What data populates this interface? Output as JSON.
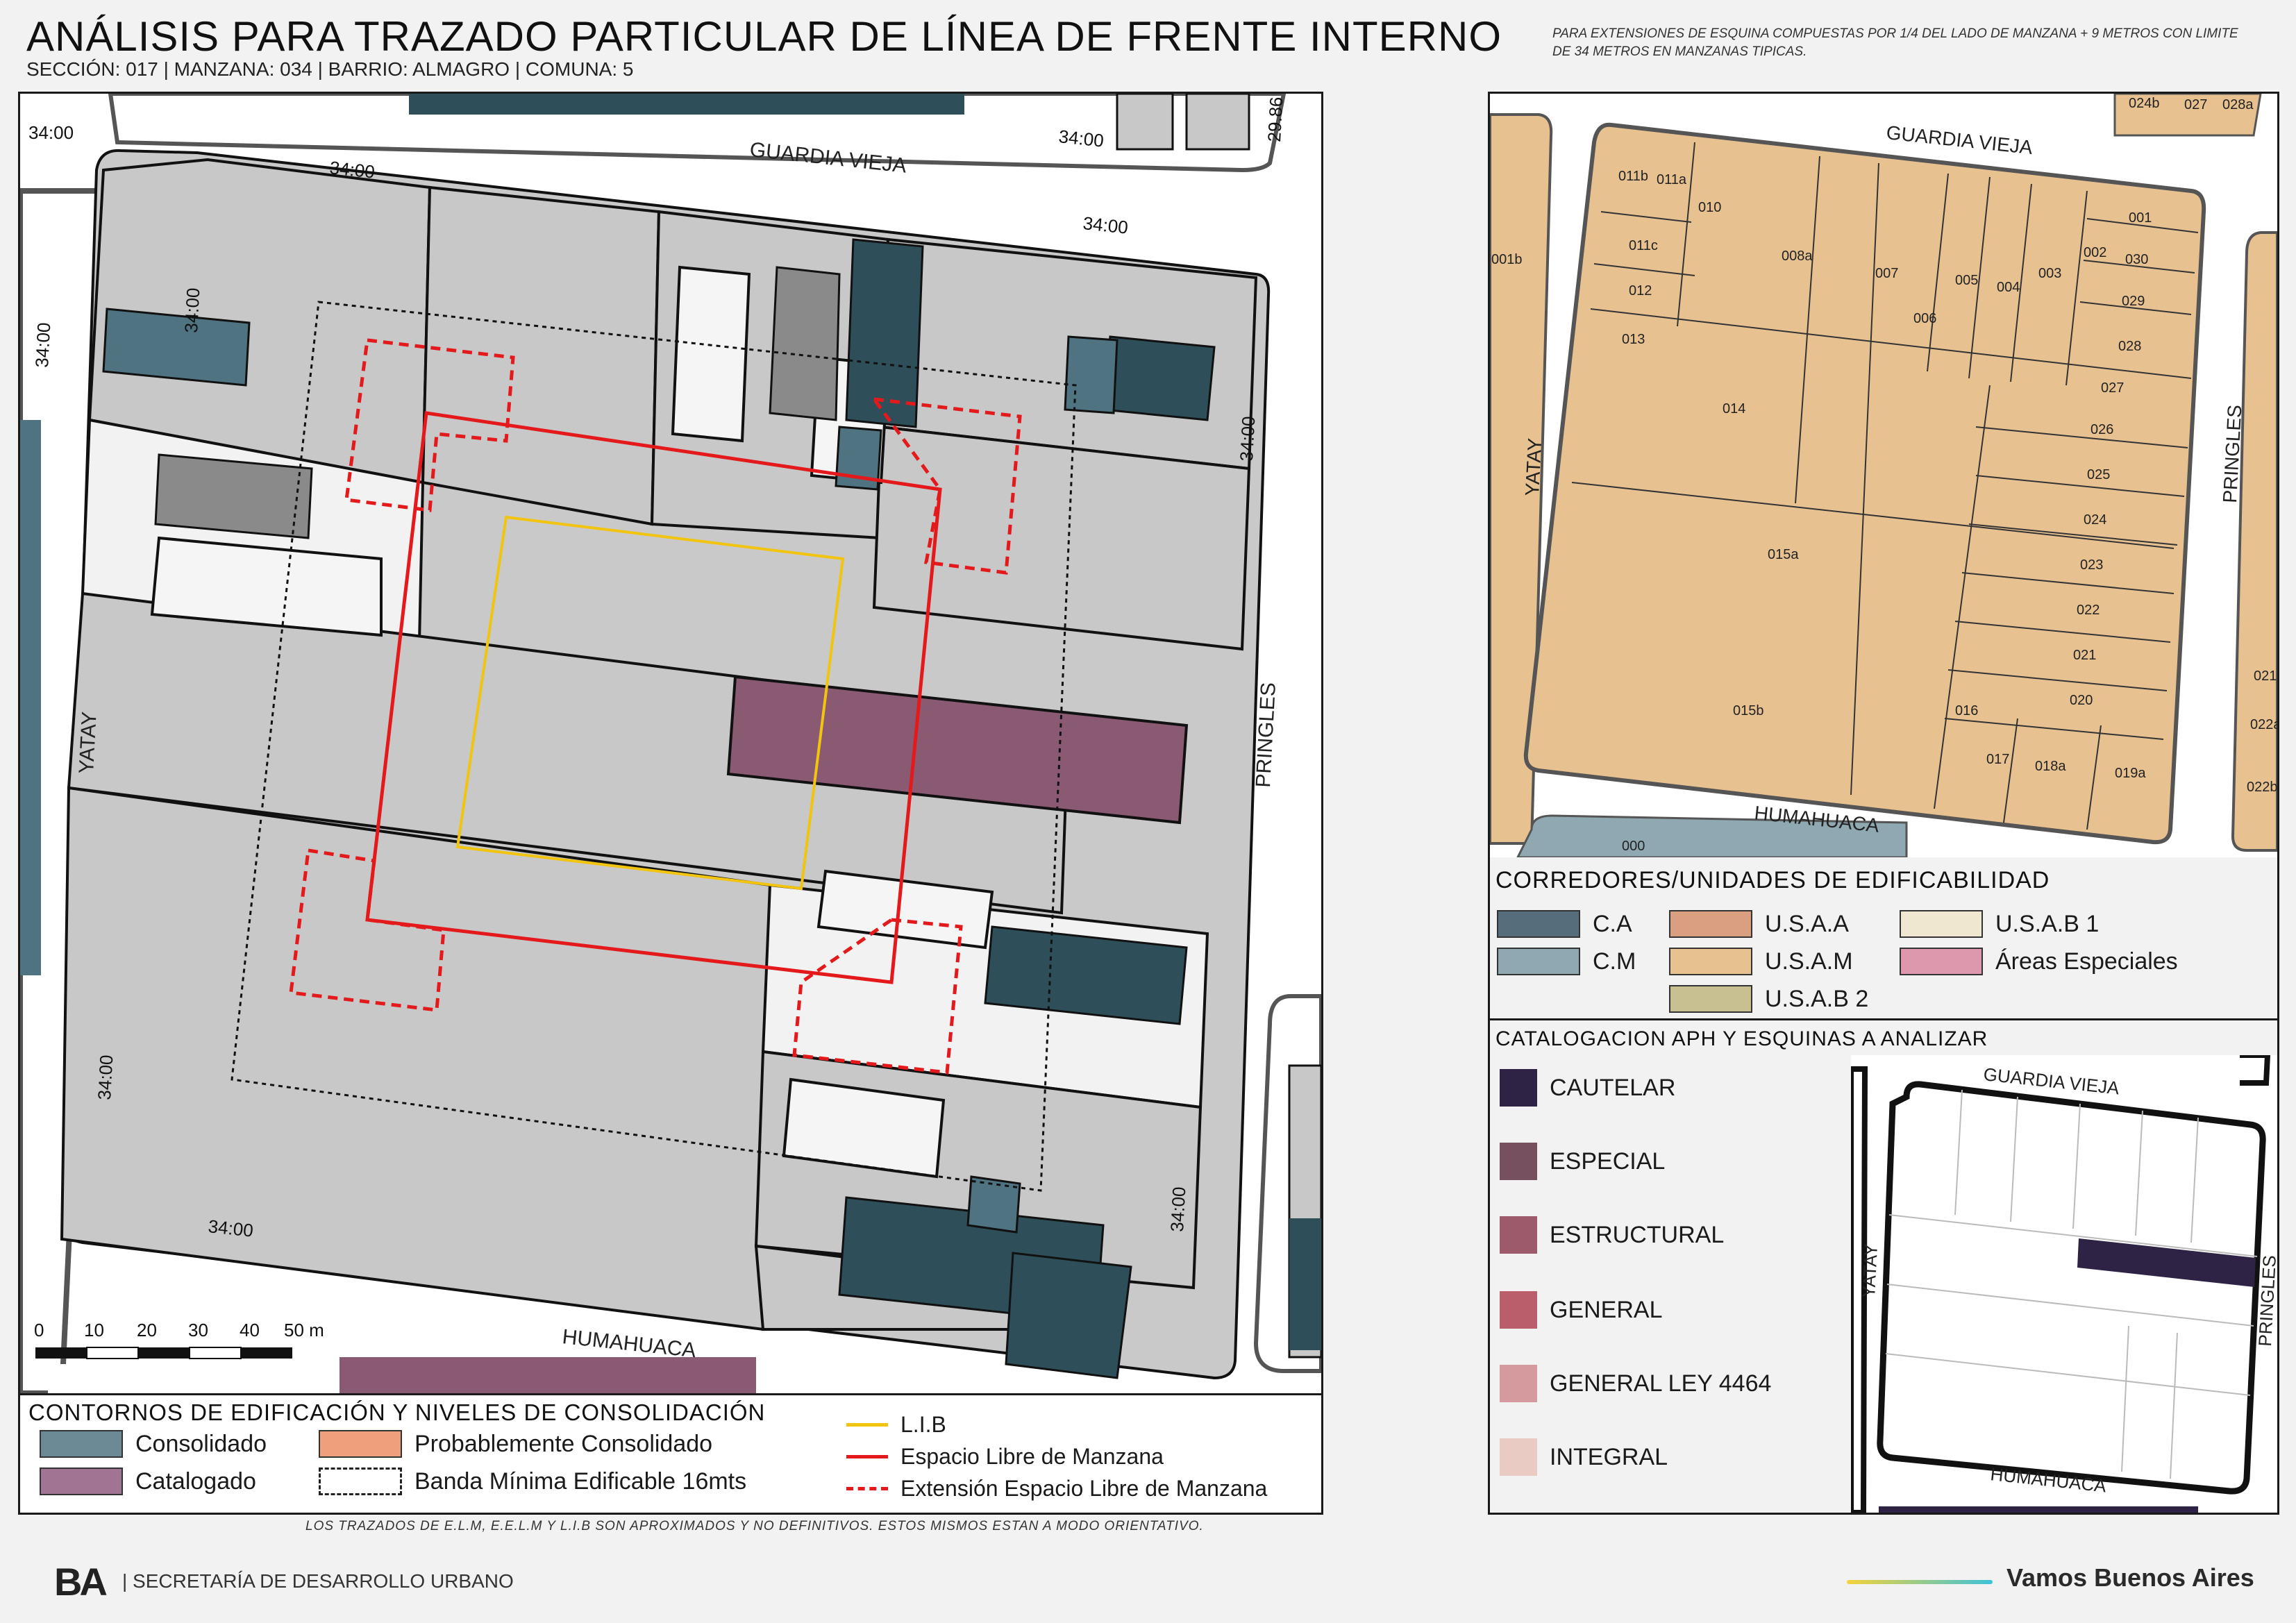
{
  "header": {
    "title": "ANÁLISIS PARA TRAZADO PARTICULAR DE LÍNEA DE FRENTE INTERNO",
    "subtitle": "SECCIÓN: 017 |  MANZANA: 034 | BARRIO: ALMAGRO | COMUNA: 5",
    "note": "PARA EXTENSIONES DE ESQUINA COMPUESTAS POR 1/4 DEL LADO DE MANZANA + 9 METROS CON LIMITE DE 34 METROS EN MANZANAS TIPICAS."
  },
  "main_map": {
    "streets": {
      "north": "GUARDIA VIEJA",
      "south": "HUMAHUACA",
      "west": "YATAY",
      "east": "PRINGLES"
    },
    "dim_labels": [
      "34:00",
      "34:00",
      "34:00",
      "34:00",
      "34:00",
      "34:00",
      "34:00",
      "34:00",
      "34:00",
      "34:00",
      "29.86"
    ],
    "scale": {
      "ticks": [
        "0",
        "10",
        "20",
        "30",
        "40",
        "50 m"
      ]
    }
  },
  "legend_contornos": {
    "title": "CONTORNOS DE EDIFICACIÓN Y NIVELES DE CONSOLIDACIÓN",
    "consolidado": "Consolidado",
    "probablemente": "Probablemente Consolidado",
    "catalogado": "Catalogado",
    "banda": "Banda Mínima Edificable 16mts",
    "lib": "L.I.B",
    "elm": "Espacio Libre de Manzana",
    "eelm": "Extensión Espacio Libre de Manzana",
    "colors": {
      "consolidado": "#6b8a96",
      "probablemente": "#efa07a",
      "catalogado": "#a07492",
      "lib": "#f1c40f",
      "elm": "#e3191b"
    }
  },
  "parcel_map": {
    "streets": {
      "north": "GUARDIA VIEJA",
      "south": "HUMAHUACA",
      "west": "YATAY",
      "east": "PRINGLES"
    },
    "parcels": [
      "011b",
      "011a",
      "010",
      "011c",
      "008a",
      "007",
      "006",
      "005",
      "004",
      "003",
      "002",
      "001",
      "030",
      "029",
      "028",
      "012",
      "013",
      "014",
      "027",
      "026",
      "025",
      "024",
      "023",
      "022",
      "021",
      "020",
      "015a",
      "015b",
      "016",
      "017",
      "018a",
      "019a"
    ],
    "edge_labels": [
      "024b",
      "027",
      "028a",
      "001b",
      "021",
      "022a",
      "022b",
      "000"
    ]
  },
  "legend_corredores": {
    "title": "CORREDORES/UNIDADES DE EDIFICABILIDAD",
    "items": [
      {
        "label": "C.A",
        "color": "#566e7c"
      },
      {
        "label": "U.S.A.A",
        "color": "#d99f80"
      },
      {
        "label": "U.S.A.B 1",
        "color": "#efe7cf"
      },
      {
        "label": "C.M",
        "color": "#8fa8b1"
      },
      {
        "label": "U.S.A.M",
        "color": "#e8c190"
      },
      {
        "label": "Áreas Especiales",
        "color": "#de98ad"
      },
      {
        "label": "U.S.A.B 2",
        "color": "#c9c091"
      }
    ]
  },
  "legend_catalogacion": {
    "title": "CATALOGACION APH Y ESQUINAS A ANALIZAR",
    "items": [
      {
        "label": "CAUTELAR",
        "color": "#2e2344"
      },
      {
        "label": "ESPECIAL",
        "color": "#76505f"
      },
      {
        "label": "ESTRUCTURAL",
        "color": "#9c5a6b"
      },
      {
        "label": "GENERAL",
        "color": "#bb5e6c"
      },
      {
        "label": "GENERAL LEY 4464",
        "color": "#d59a9e"
      },
      {
        "label": "INTEGRAL",
        "color": "#e9cbc4"
      }
    ],
    "mini_streets": {
      "north": "GUARDIA VIEJA",
      "south": "HUMAHUACA",
      "west": "YATAY",
      "east": "PRINGLES"
    }
  },
  "footer": {
    "note": "LOS TRAZADOS DE E.L.M, E.E.L.M Y L.I.B SON APROXIMADOS Y NO DEFINITIVOS. ESTOS MISMOS ESTAN A MODO ORIENTATIVO.",
    "logo": "BA",
    "secretaria": "| SECRETARÍA DE DESARROLLO URBANO",
    "slogan": "Vamos Buenos Aires"
  }
}
